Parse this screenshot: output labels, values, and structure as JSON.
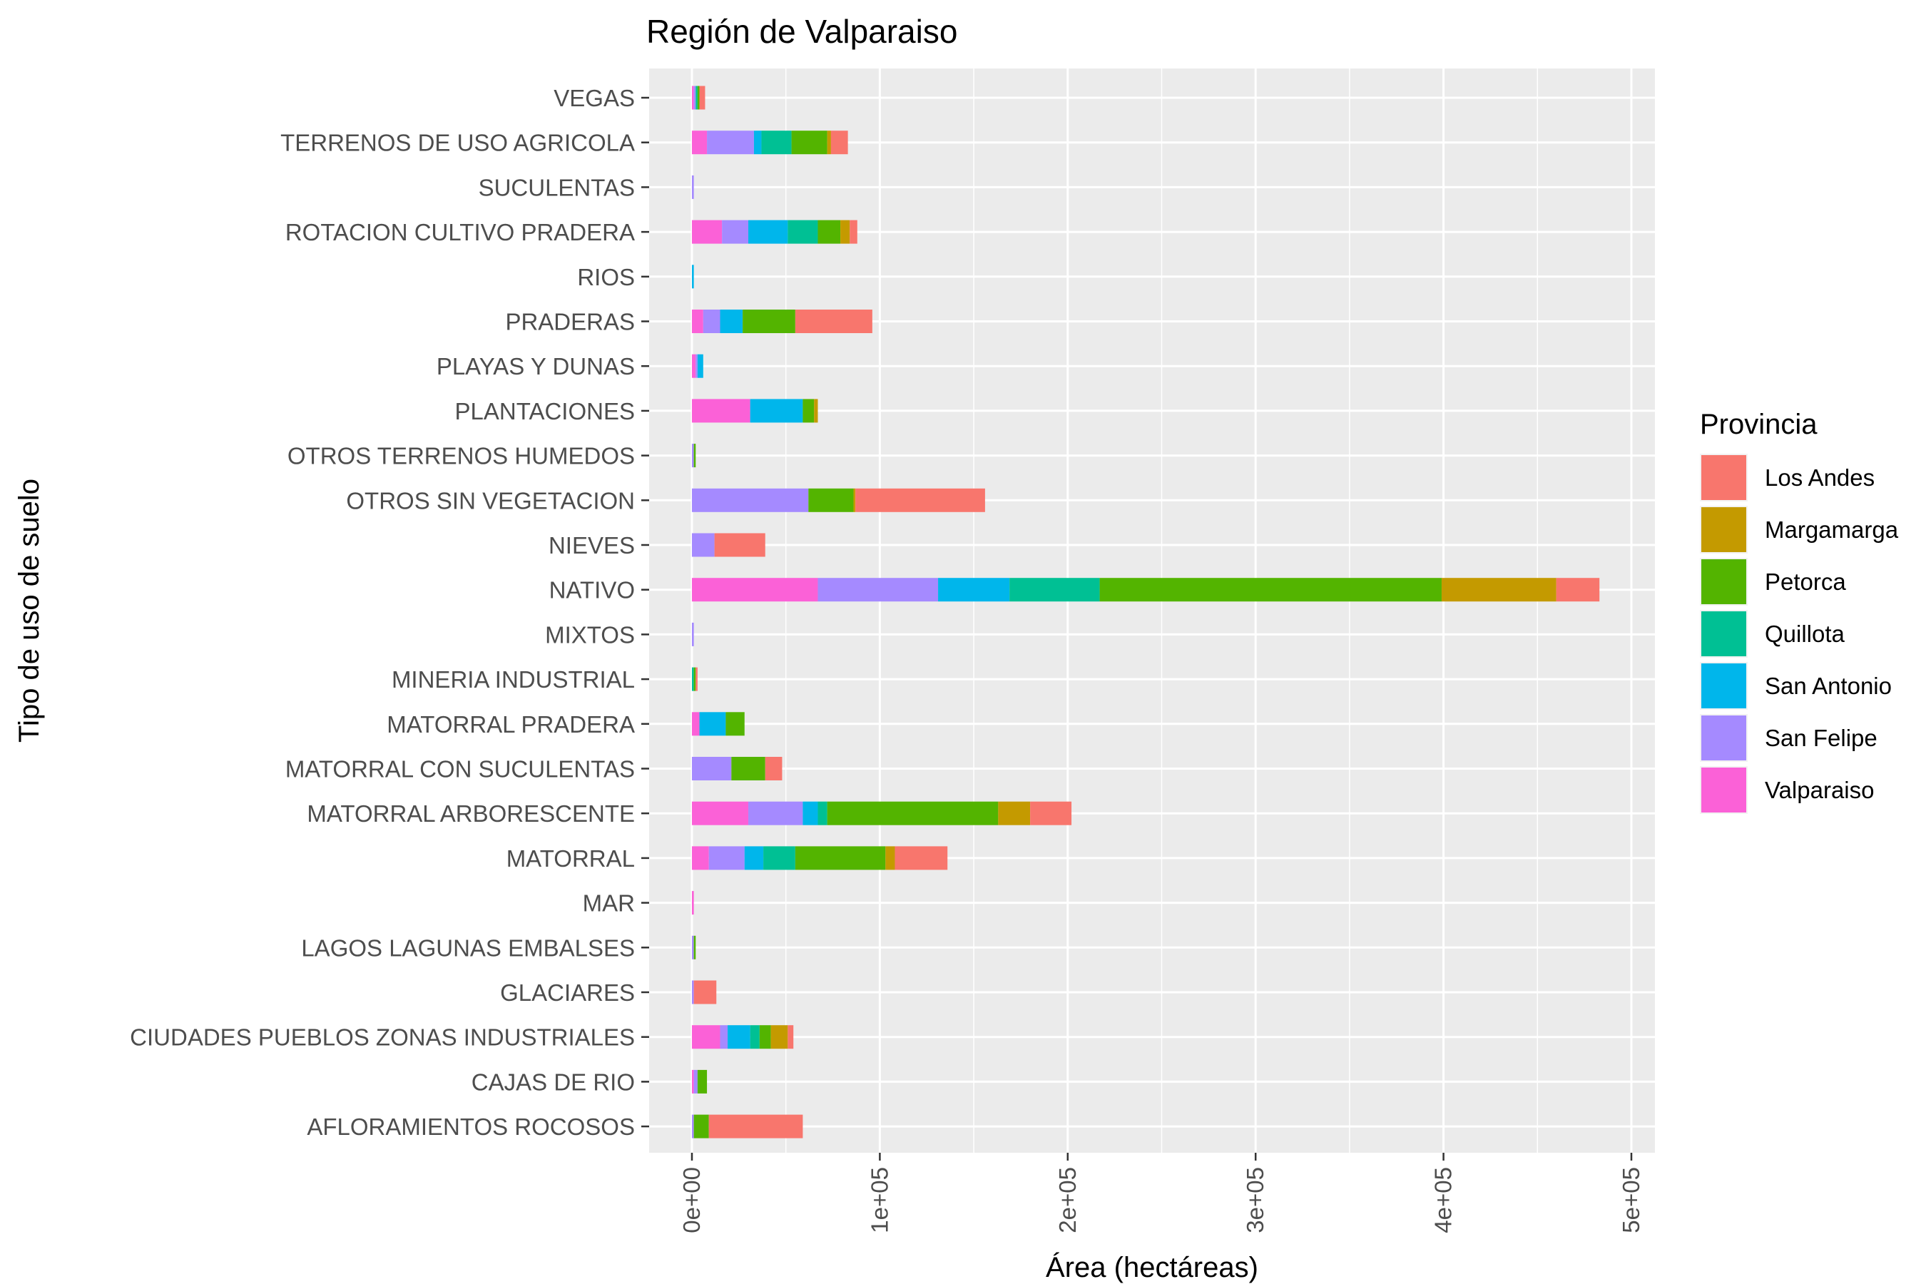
{
  "chart_data": {
    "type": "bar",
    "orientation": "horizontal",
    "stacked": true,
    "title": "Región de Valparaiso",
    "xlabel": "Área (hectáreas)",
    "ylabel": "Tipo de uso de suelo",
    "xlim": [
      0,
      500000
    ],
    "x_ticks": [
      0,
      100000,
      200000,
      300000,
      400000,
      500000
    ],
    "x_tick_labels": [
      "0e+00",
      "1e+05",
      "2e+05",
      "3e+05",
      "4e+05",
      "5e+05"
    ],
    "grid": true,
    "background": "#ebebeb",
    "legend_position": "right",
    "legend_title": "Provincia",
    "categories": [
      "VEGAS",
      "TERRENOS DE USO AGRICOLA",
      "SUCULENTAS",
      "ROTACION CULTIVO PRADERA",
      "RIOS",
      "PRADERAS",
      "PLAYAS Y DUNAS",
      "PLANTACIONES",
      "OTROS TERRENOS HUMEDOS",
      "OTROS SIN VEGETACION",
      "NIEVES",
      "NATIVO",
      "MIXTOS",
      "MINERIA INDUSTRIAL",
      "MATORRAL PRADERA",
      "MATORRAL CON SUCULENTAS",
      "MATORRAL ARBORESCENTE",
      "MATORRAL",
      "MAR",
      "LAGOS LAGUNAS EMBALSES",
      "GLACIARES",
      "CIUDADES PUEBLOS ZONAS INDUSTRIALES",
      "CAJAS DE RIO",
      "AFLORAMIENTOS ROCOSOS"
    ],
    "series": [
      {
        "name": "Los Andes",
        "color": "#F8766D",
        "values": [
          3000,
          9000,
          0,
          4000,
          0,
          41000,
          0,
          0,
          0,
          69000,
          27000,
          23000,
          0,
          1000,
          0,
          9000,
          22000,
          28000,
          0,
          0,
          12000,
          3000,
          0,
          50000
        ]
      },
      {
        "name": "Margamarga",
        "color": "#C49A00",
        "values": [
          0,
          2000,
          0,
          5000,
          0,
          0,
          0,
          2000,
          0,
          1000,
          0,
          61000,
          0,
          0,
          0,
          0,
          17000,
          5000,
          0,
          0,
          0,
          9000,
          0,
          0
        ]
      },
      {
        "name": "Petorca",
        "color": "#53B400",
        "values": [
          1000,
          19000,
          0,
          12000,
          0,
          28000,
          0,
          6000,
          1000,
          24000,
          0,
          182000,
          0,
          1000,
          10000,
          18000,
          91000,
          48000,
          0,
          1000,
          0,
          6000,
          5000,
          8000
        ]
      },
      {
        "name": "Quillota",
        "color": "#00C094",
        "values": [
          1000,
          16000,
          0,
          16000,
          0,
          0,
          0,
          0,
          0,
          0,
          0,
          48000,
          0,
          1000,
          0,
          0,
          5000,
          17000,
          0,
          0,
          0,
          5000,
          0,
          0
        ]
      },
      {
        "name": "San Antonio",
        "color": "#00B6EB",
        "values": [
          0,
          4000,
          0,
          21000,
          1000,
          12000,
          3000,
          28000,
          0,
          0,
          0,
          38000,
          0,
          0,
          14000,
          0,
          8000,
          10000,
          0,
          0,
          0,
          12000,
          0,
          0
        ]
      },
      {
        "name": "San Felipe",
        "color": "#A58AFF",
        "values": [
          1000,
          25000,
          1000,
          14000,
          0,
          9000,
          1000,
          0,
          1000,
          62000,
          12000,
          64000,
          1000,
          0,
          0,
          21000,
          29000,
          19000,
          0,
          1000,
          1000,
          4000,
          2000,
          1000
        ]
      },
      {
        "name": "Valparaiso",
        "color": "#FB61D7",
        "values": [
          1000,
          8000,
          0,
          16000,
          0,
          6000,
          2000,
          31000,
          0,
          0,
          0,
          67000,
          0,
          0,
          4000,
          0,
          30000,
          9000,
          1000,
          0,
          0,
          15000,
          1000,
          0
        ]
      }
    ]
  }
}
